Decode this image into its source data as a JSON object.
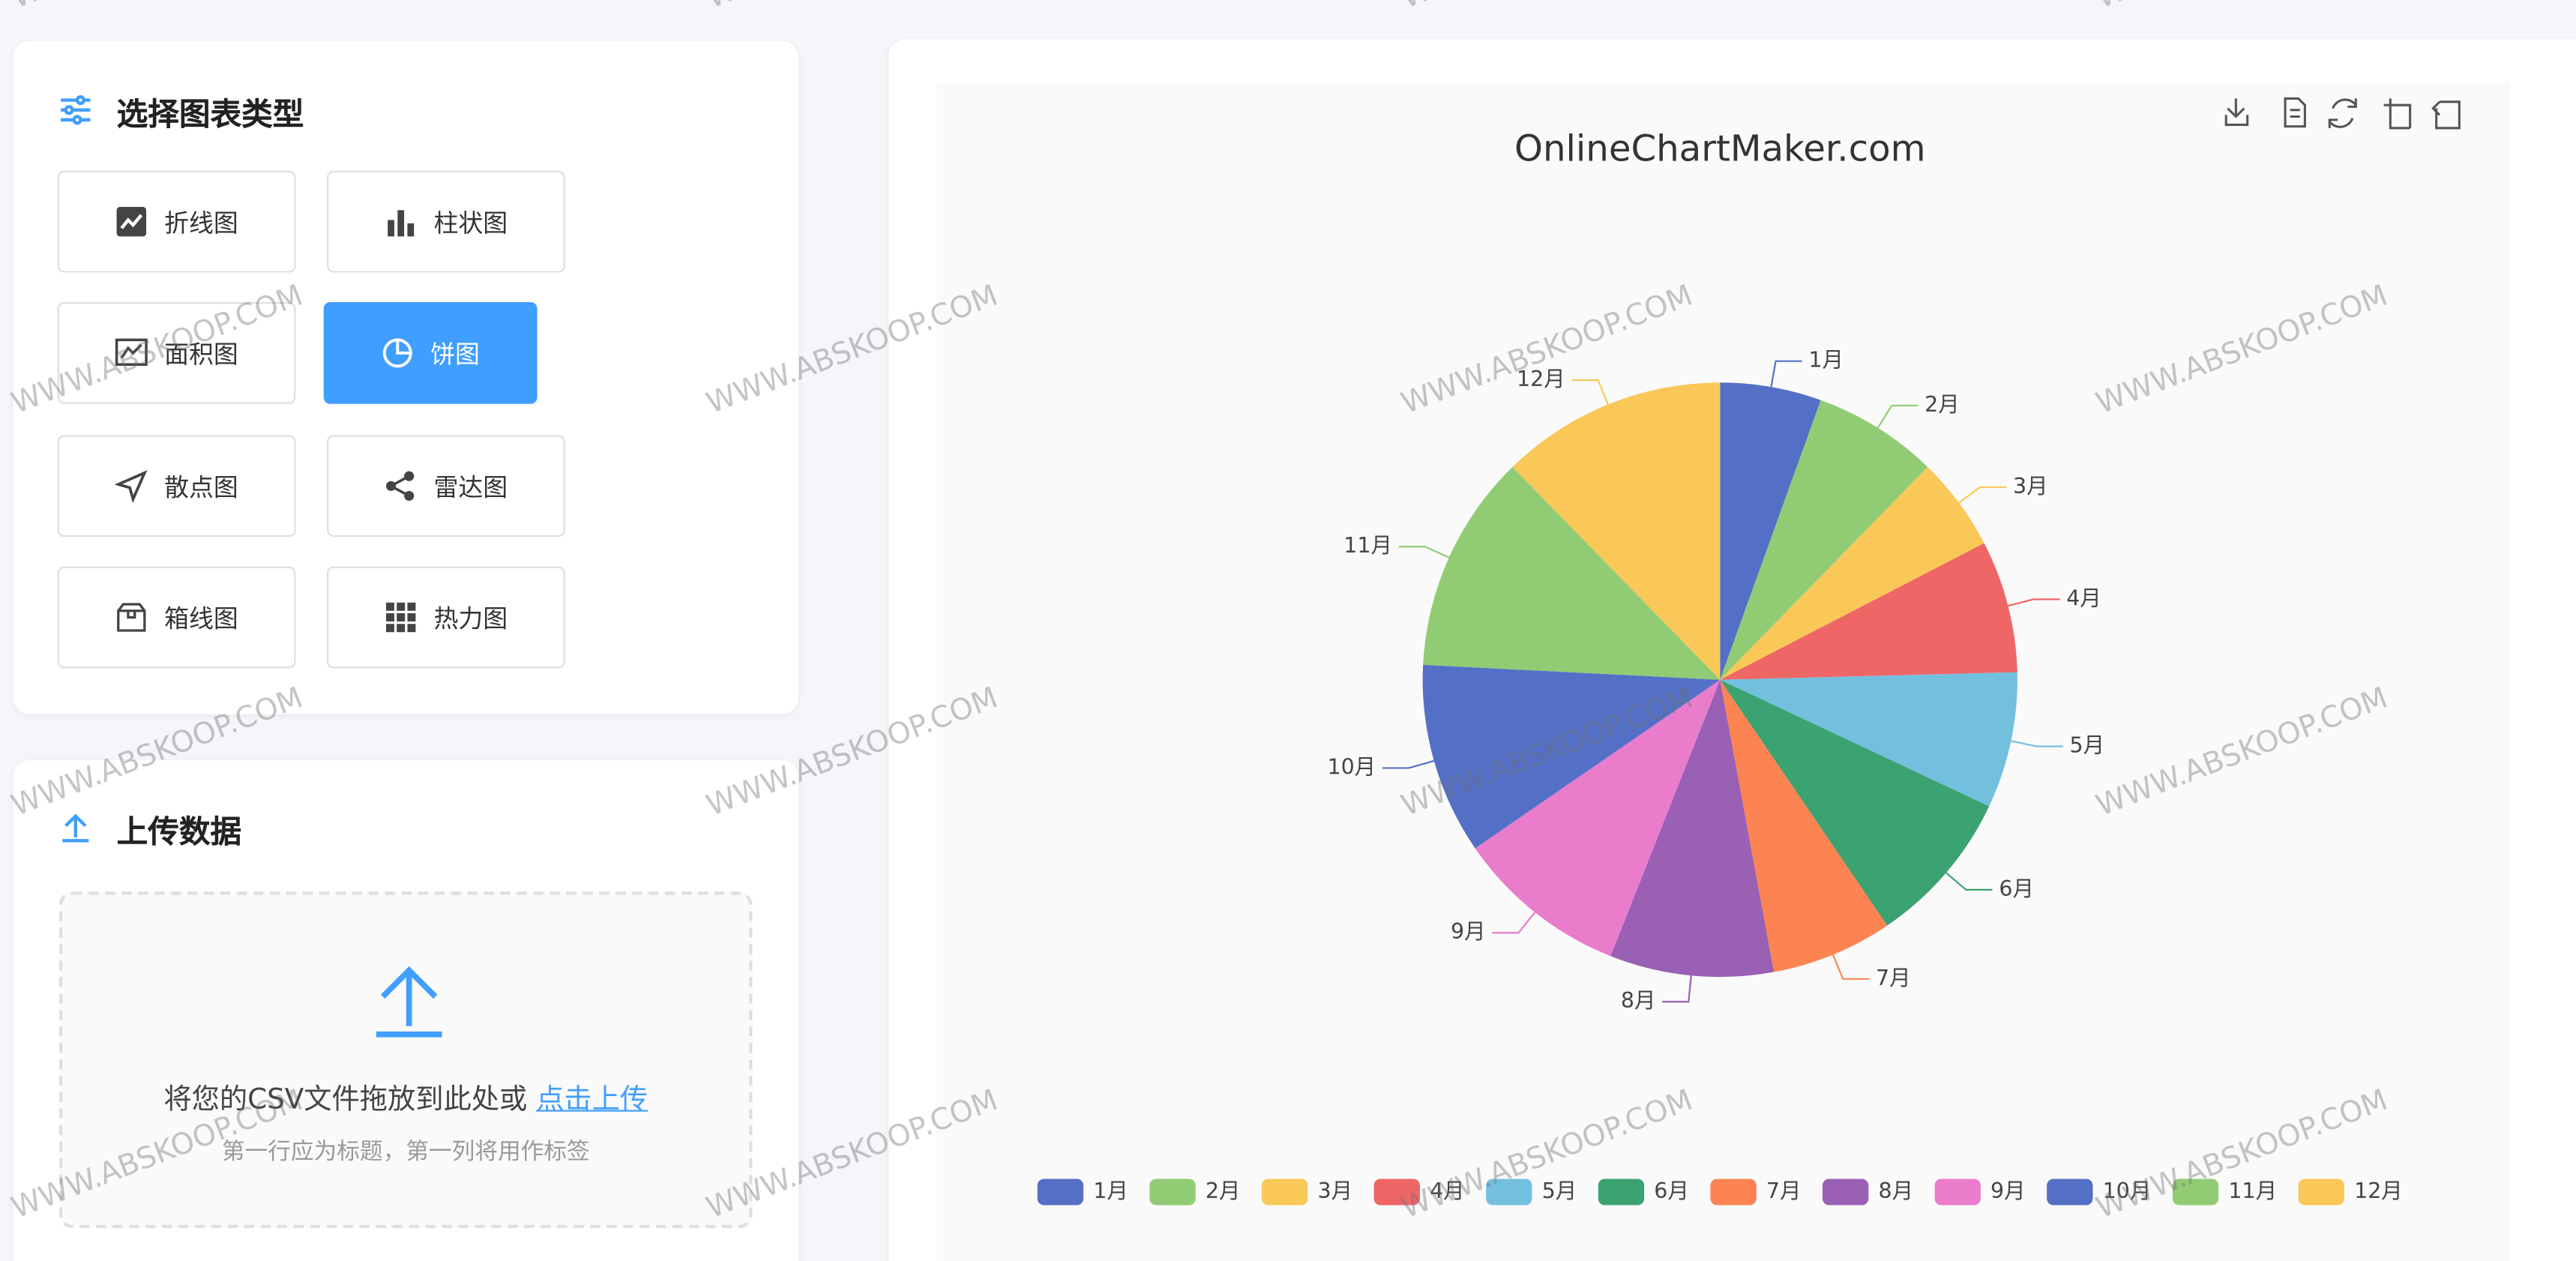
{
  "sidebar": {
    "chart_type_title": "选择图表类型",
    "chart_types": [
      "折线图",
      "柱状图",
      "面积图",
      "饼图",
      "散点图",
      "雷达图",
      "箱线图",
      "热力图"
    ],
    "upload_title": "上传数据",
    "upload_text": "将您的CSV文件拖放到此处或",
    "upload_link": "点击上传",
    "upload_hint": "第一行应为标题，第一列将用作标签"
  },
  "watermark": "WWW.ABSKOOP.COM",
  "chart_data": {
    "type": "pie",
    "title": "OnlineChartMaker.com",
    "categories": [
      "1月",
      "2月",
      "3月",
      "4月",
      "5月",
      "6月",
      "7月",
      "8月",
      "9月",
      "10月",
      "11月",
      "12月"
    ],
    "values": [
      55,
      68,
      51,
      72,
      74,
      85,
      66,
      89,
      94,
      104,
      119,
      123
    ],
    "colors": [
      "#5470c6",
      "#91cc75",
      "#fac858",
      "#ee6666",
      "#73c0de",
      "#3ba272",
      "#fc8452",
      "#9a60b4",
      "#ea7ccc",
      "#5470c6",
      "#91cc75",
      "#fac858"
    ],
    "legend": "bottom"
  }
}
